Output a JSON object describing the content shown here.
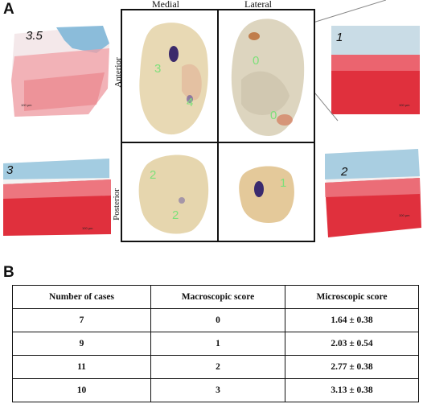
{
  "panels": {
    "a": "A",
    "b": "B"
  },
  "headers": {
    "medial": "Medial",
    "lateral": "Lateral",
    "anterior": "Anterior",
    "posterior": "Posterior"
  },
  "histology": [
    {
      "score": "3.5",
      "scale": "100 µm"
    },
    {
      "score": "1",
      "scale": "100 µm"
    },
    {
      "score": "3",
      "scale": "100 µm"
    },
    {
      "score": "2",
      "scale": "100 µm"
    }
  ],
  "photo_scores": {
    "medial_anterior": [
      "3",
      "4"
    ],
    "lateral_anterior": [
      "0",
      "0"
    ],
    "medial_posterior": [
      "2",
      "2"
    ],
    "lateral_posterior": [
      "1"
    ]
  },
  "table": {
    "headers": [
      "Number of cases",
      "Macroscopic score",
      "Microscopic score"
    ],
    "rows": [
      [
        "7",
        "0",
        "1.64 ± 0.38"
      ],
      [
        "9",
        "1",
        "2.03 ± 0.54"
      ],
      [
        "11",
        "2",
        "2.77 ± 0.38"
      ],
      [
        "10",
        "3",
        "3.13 ± 0.38"
      ]
    ]
  },
  "colors": {
    "safranin": "#e0303d",
    "fastgreen": "#7fb7d8",
    "score_text": "#7ee07a"
  }
}
